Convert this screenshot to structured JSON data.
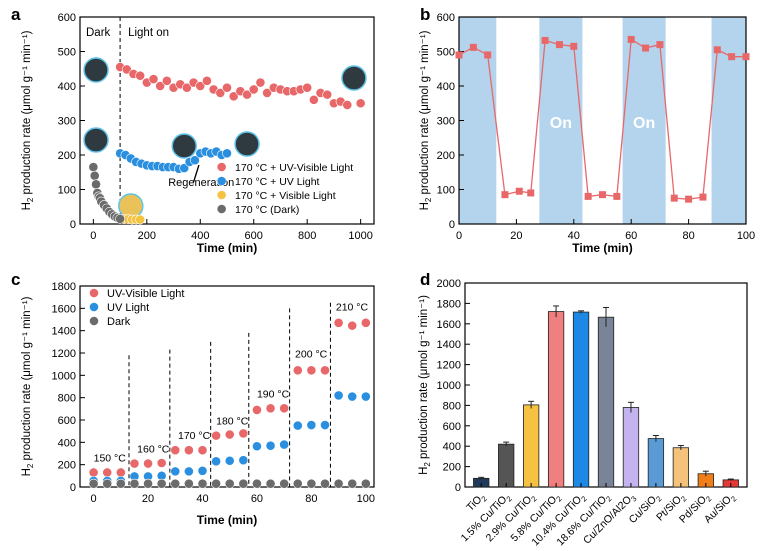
{
  "panels": {
    "a": {
      "label": "a"
    },
    "b": {
      "label": "b"
    },
    "c": {
      "label": "c"
    },
    "d": {
      "label": "d"
    }
  },
  "chart_data": [
    {
      "id": "a",
      "type": "scatter",
      "title": "",
      "xlabel": "Time (min)",
      "ylabel": "H2 production rate (μmol g⁻¹ min⁻¹)",
      "xlim": [
        -50,
        1050
      ],
      "ylim": [
        0,
        600
      ],
      "xticks": [
        0,
        200,
        400,
        600,
        800,
        1000
      ],
      "yticks": [
        0,
        100,
        200,
        300,
        400,
        500,
        600
      ],
      "annotations": {
        "dark": "Dark",
        "light_on": "Light on",
        "regeneration": "Regeneration"
      },
      "divider_x": 100,
      "series": [
        {
          "name": "170 °C + UV-Visible Light",
          "color": "#e8686a",
          "x": [
            100,
            125,
            150,
            175,
            200,
            225,
            250,
            275,
            300,
            325,
            350,
            375,
            400,
            425,
            450,
            475,
            500,
            525,
            550,
            575,
            600,
            625,
            650,
            675,
            700,
            725,
            750,
            775,
            800,
            825,
            850,
            875,
            900,
            925,
            950,
            1000
          ],
          "y": [
            455,
            448,
            435,
            430,
            410,
            420,
            400,
            415,
            395,
            405,
            395,
            410,
            400,
            415,
            390,
            380,
            395,
            370,
            385,
            375,
            390,
            410,
            380,
            395,
            390,
            385,
            385,
            390,
            395,
            360,
            380,
            375,
            350,
            355,
            345,
            350
          ]
        },
        {
          "name": "170 °C + UV Light",
          "color": "#2b8fe0",
          "x": [
            100,
            120,
            140,
            160,
            180,
            200,
            220,
            240,
            260,
            280,
            300,
            320,
            340,
            360,
            380,
            400,
            420,
            440,
            460,
            480,
            500
          ],
          "y": [
            205,
            200,
            190,
            180,
            175,
            170,
            168,
            168,
            165,
            165,
            165,
            160,
            162,
            180,
            185,
            205,
            210,
            205,
            210,
            200,
            205
          ]
        },
        {
          "name": "170 °C + Visible Light",
          "color": "#f5c242",
          "x": [
            100,
            115,
            130,
            145,
            160,
            175
          ],
          "y": [
            15,
            14,
            14,
            13,
            13,
            13
          ]
        },
        {
          "name": "170 °C (Dark)",
          "color": "#6b6b6b",
          "x": [
            0,
            5,
            10,
            15,
            20,
            25,
            30,
            40,
            50,
            60,
            70,
            80,
            90,
            100
          ],
          "y": [
            165,
            140,
            115,
            90,
            80,
            75,
            65,
            55,
            45,
            35,
            28,
            22,
            18,
            15
          ]
        }
      ]
    },
    {
      "id": "b",
      "type": "line",
      "title": "",
      "xlabel": "Time (min)",
      "ylabel": "H2 production rate (μmol g⁻¹ min⁻¹)",
      "xlim": [
        0,
        100
      ],
      "ylim": [
        0,
        600
      ],
      "xticks": [
        0,
        20,
        40,
        60,
        80,
        100
      ],
      "yticks": [
        0,
        100,
        200,
        300,
        400,
        500,
        600
      ],
      "on_intervals": [
        [
          0,
          13
        ],
        [
          28,
          43
        ],
        [
          57,
          72
        ],
        [
          88,
          100
        ]
      ],
      "on_labels": [
        "On",
        "On"
      ],
      "series": [
        {
          "name": "H2 rate",
          "color": "#e8686a",
          "x": [
            0,
            5,
            10,
            16,
            21,
            25,
            30,
            35,
            40,
            45,
            50,
            55,
            60,
            65,
            70,
            75,
            80,
            85,
            90,
            95,
            100
          ],
          "y": [
            490,
            512,
            490,
            85,
            95,
            90,
            532,
            520,
            515,
            80,
            85,
            80,
            535,
            510,
            520,
            75,
            72,
            78,
            505,
            485,
            485
          ]
        }
      ]
    },
    {
      "id": "c",
      "type": "scatter",
      "title": "",
      "xlabel": "Time (min)",
      "ylabel": "H2 production rate (μmol g⁻¹ min⁻¹)",
      "xlim": [
        -5,
        103
      ],
      "ylim": [
        0,
        1800
      ],
      "xticks": [
        0,
        20,
        40,
        60,
        80,
        100
      ],
      "yticks": [
        0,
        200,
        400,
        600,
        800,
        1000,
        1200,
        1400,
        1600,
        1800
      ],
      "dividers": [
        13,
        28,
        43,
        57,
        72,
        87
      ],
      "temperature_labels": [
        "150 °C",
        "160 °C",
        "170 °C",
        "180 °C",
        "190 °C",
        "200 °C",
        "210 °C"
      ],
      "series": [
        {
          "name": "UV-Visible Light",
          "color": "#e8686a",
          "x": [
            0,
            5,
            10,
            15,
            20,
            25,
            30,
            35,
            40,
            45,
            50,
            55,
            60,
            65,
            70,
            75,
            80,
            85,
            90,
            95,
            100
          ],
          "y": [
            130,
            130,
            130,
            210,
            210,
            215,
            330,
            330,
            330,
            460,
            470,
            480,
            690,
            705,
            705,
            1045,
            1045,
            1045,
            1470,
            1445,
            1470
          ]
        },
        {
          "name": "UV Light",
          "color": "#2b8fe0",
          "x": [
            0,
            5,
            10,
            15,
            20,
            25,
            30,
            35,
            40,
            45,
            50,
            55,
            60,
            65,
            70,
            75,
            80,
            85,
            90,
            95,
            100
          ],
          "y": [
            55,
            55,
            55,
            95,
            95,
            100,
            140,
            140,
            145,
            230,
            235,
            240,
            365,
            370,
            380,
            550,
            555,
            555,
            820,
            810,
            810
          ]
        },
        {
          "name": "Dark",
          "color": "#6b6b6b",
          "x": [
            0,
            5,
            10,
            15,
            20,
            25,
            30,
            35,
            40,
            45,
            50,
            55,
            60,
            65,
            70,
            75,
            80,
            85,
            90,
            95,
            100
          ],
          "y": [
            30,
            30,
            30,
            30,
            30,
            30,
            30,
            30,
            30,
            30,
            30,
            30,
            30,
            30,
            30,
            30,
            30,
            30,
            30,
            30,
            30
          ]
        }
      ]
    },
    {
      "id": "d",
      "type": "bar",
      "title": "",
      "xlabel": "",
      "ylabel": "H2 production rate (μmol g⁻¹ min⁻¹)",
      "ylim": [
        0,
        2000
      ],
      "yticks": [
        0,
        200,
        400,
        600,
        800,
        1000,
        1200,
        1400,
        1600,
        1800,
        2000
      ],
      "categories": [
        "TiO2",
        "1.5% Cu/TiO2",
        "2.9% Cu/TiO2",
        "5.8% Cu/TiO2",
        "10.4% Cu/TiO2",
        "18.6% Cu/TiO2",
        "Cu/ZnO/Al2O3",
        "Cu/SiO2",
        "Pt/SiO2",
        "Pd/SiO2",
        "Au/SiO2"
      ],
      "values": [
        85,
        420,
        805,
        1720,
        1715,
        1665,
        780,
        475,
        385,
        130,
        70
      ],
      "errors": [
        10,
        20,
        35,
        55,
        12,
        95,
        50,
        30,
        22,
        25,
        8
      ],
      "colors": [
        "#1f3a5a",
        "#555555",
        "#f5c242",
        "#f08080",
        "#1e88e5",
        "#7a8499",
        "#c5b3f0",
        "#5b9bd5",
        "#f4c27a",
        "#f07f1a",
        "#e53935"
      ]
    }
  ]
}
